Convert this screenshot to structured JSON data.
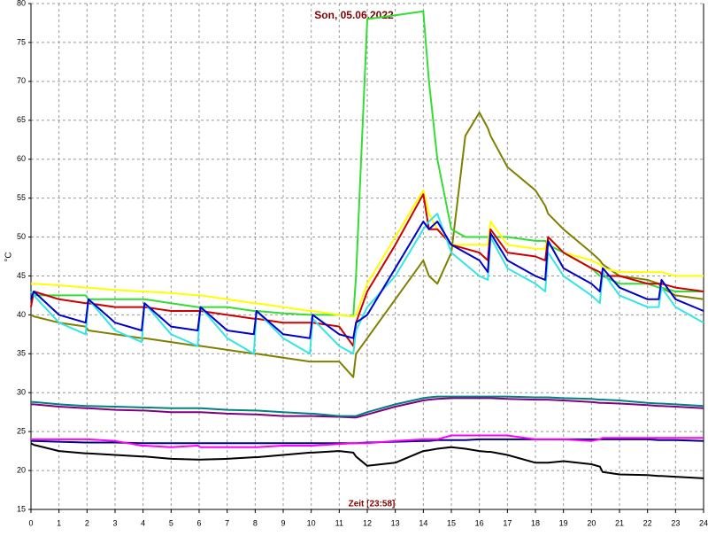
{
  "chart_data": {
    "type": "line",
    "title": "Son, 05.06.2022",
    "x_label": "Zeit [23:58]",
    "y_label": "°C",
    "x": [
      0,
      0.1,
      1,
      1.95,
      2.05,
      3,
      3.95,
      4.05,
      5,
      5.95,
      6.05,
      7,
      7.95,
      8.05,
      9,
      9.95,
      10.05,
      11,
      11.5,
      11.6,
      12,
      13,
      14,
      14.2,
      14.5,
      15,
      15.5,
      16,
      16.3,
      16.4,
      17,
      18,
      18.35,
      18.45,
      19,
      20,
      20.3,
      20.4,
      21,
      22,
      22.4,
      22.5,
      23,
      24
    ],
    "series": [
      {
        "color": "#000000",
        "values": [
          23.5,
          23.3,
          22.5,
          22.2,
          22.2,
          22,
          21.8,
          21.8,
          21.5,
          21.4,
          21.4,
          21.5,
          21.7,
          21.7,
          22,
          22.3,
          22.3,
          22.5,
          22.3,
          21.8,
          20.6,
          21,
          22.5,
          22.6,
          22.8,
          23,
          22.8,
          22.5,
          22.4,
          22.4,
          22,
          21,
          21,
          21,
          21.2,
          20.8,
          20.5,
          19.8,
          19.5,
          19.4,
          19.3,
          19.3,
          19.2,
          19
        ]
      },
      {
        "color": "#000080",
        "values": [
          23.8,
          23.8,
          23.7,
          23.6,
          23.6,
          23.6,
          23.5,
          23.5,
          23.5,
          23.5,
          23.5,
          23.5,
          23.5,
          23.5,
          23.5,
          23.5,
          23.5,
          23.5,
          23.5,
          23.5,
          23.6,
          23.7,
          23.8,
          23.8,
          23.9,
          23.9,
          23.9,
          24,
          24,
          24,
          24,
          24,
          24,
          24,
          24,
          24,
          24,
          24,
          24,
          24,
          23.9,
          23.9,
          23.9,
          23.8
        ]
      },
      {
        "color": "#ff00ff",
        "values": [
          24,
          24,
          24,
          24,
          24,
          23.8,
          23.2,
          23.2,
          23,
          23.2,
          23,
          23,
          23,
          23,
          23.2,
          23.2,
          23.2,
          23.4,
          23.5,
          23.5,
          23.5,
          23.8,
          24,
          24,
          24,
          24.5,
          24.5,
          24.5,
          24.5,
          24.5,
          24.5,
          24,
          24,
          24,
          24,
          23.8,
          24,
          24.2,
          24.2,
          24.2,
          24.2,
          24.2,
          24.2,
          24.2
        ]
      },
      {
        "color": "#800080",
        "values": [
          28.5,
          28.5,
          28.2,
          28,
          28,
          27.8,
          27.7,
          27.7,
          27.5,
          27.5,
          27.5,
          27.3,
          27.2,
          27.2,
          27,
          27,
          27,
          26.9,
          26.8,
          26.8,
          27.2,
          28.2,
          29,
          29.1,
          29.2,
          29.3,
          29.3,
          29.3,
          29.3,
          29.3,
          29.2,
          29.1,
          29.1,
          29.1,
          29,
          28.8,
          28.7,
          28.7,
          28.6,
          28.4,
          28.3,
          28.3,
          28.2,
          28
        ]
      },
      {
        "color": "#008080",
        "values": [
          28.8,
          28.8,
          28.5,
          28.3,
          28.3,
          28.2,
          28.1,
          28.1,
          28,
          28,
          28,
          27.8,
          27.7,
          27.7,
          27.5,
          27.3,
          27.3,
          27,
          27,
          27,
          27.5,
          28.5,
          29.3,
          29.4,
          29.5,
          29.5,
          29.5,
          29.5,
          29.5,
          29.5,
          29.5,
          29.4,
          29.4,
          29.4,
          29.3,
          29.2,
          29.1,
          29.1,
          29,
          28.7,
          28.6,
          28.6,
          28.5,
          28.3
        ]
      },
      {
        "color": "#808000",
        "values": [
          40,
          39.8,
          39,
          38.5,
          38,
          37.5,
          37,
          37,
          36.5,
          36,
          36,
          35.5,
          35,
          35,
          34.5,
          34,
          34,
          34,
          32,
          35,
          37,
          42,
          47,
          45,
          44,
          48,
          63,
          66,
          64,
          63,
          59,
          56,
          54,
          53,
          51,
          48,
          47,
          46.5,
          45,
          44.5,
          44,
          43.5,
          42.5,
          42
        ]
      },
      {
        "color": "#33dd33",
        "values": [
          43,
          42.5,
          42.5,
          42.5,
          42,
          42,
          42,
          42,
          41.5,
          41,
          41,
          41,
          40.5,
          40.5,
          40.2,
          40,
          40,
          40,
          39.8,
          45,
          78,
          78.5,
          79,
          70,
          60,
          51,
          50,
          50,
          50,
          50,
          50,
          49.5,
          49.5,
          49,
          48,
          46,
          45,
          45,
          44,
          44,
          43.5,
          43.5,
          43,
          43
        ]
      },
      {
        "color": "#ffff00",
        "values": [
          44,
          44,
          43.8,
          43.5,
          43.5,
          43.2,
          43,
          43,
          42.8,
          42.5,
          42.5,
          42,
          41.5,
          41.5,
          41,
          40.5,
          40.5,
          40,
          39.8,
          40,
          44,
          50,
          56,
          53,
          51,
          49,
          49,
          49,
          49,
          52,
          49,
          48.5,
          48.5,
          50,
          48,
          47,
          46.5,
          46,
          45.5,
          45.5,
          45.5,
          45.5,
          45,
          45
        ]
      },
      {
        "color": "#cc0000",
        "values": [
          41,
          43,
          42,
          41.5,
          41.5,
          41,
          41,
          41,
          40.5,
          40.5,
          40.5,
          40,
          39.5,
          39.5,
          39,
          39,
          39,
          38.5,
          36,
          39,
          43,
          49,
          55.5,
          51,
          51,
          49,
          48.5,
          48,
          47,
          51,
          48,
          47.5,
          47,
          50,
          48,
          46,
          45.5,
          45,
          45,
          44,
          44,
          44,
          43.5,
          43
        ]
      },
      {
        "color": "#33e5e5",
        "values": [
          43,
          42.5,
          39,
          37.5,
          42,
          38,
          36.5,
          41.5,
          37.5,
          36,
          41,
          37,
          35,
          40.5,
          37,
          35,
          39.5,
          36,
          35,
          38,
          41,
          45,
          51,
          52,
          53,
          48,
          46.5,
          45,
          44.5,
          50,
          46,
          44,
          43,
          48,
          45,
          42.5,
          41.5,
          45.5,
          42.5,
          41,
          41,
          43.5,
          41,
          39
        ]
      },
      {
        "color": "#0000cc",
        "values": [
          42,
          43,
          40,
          39,
          42,
          39,
          38,
          41.5,
          38.5,
          38,
          41,
          38,
          37.5,
          40.5,
          37.5,
          37,
          40,
          37.5,
          37,
          39,
          40,
          46,
          52,
          51,
          52,
          49,
          48,
          47,
          45.5,
          50.5,
          47,
          45,
          44.5,
          49.5,
          46,
          44,
          43,
          46,
          43.5,
          42,
          42,
          44.5,
          42,
          40.5
        ]
      }
    ],
    "xlim": [
      0,
      24
    ],
    "ylim": [
      15,
      80
    ],
    "xticks": [
      0,
      1,
      2,
      3,
      4,
      5,
      6,
      7,
      8,
      9,
      10,
      11,
      12,
      13,
      14,
      15,
      16,
      17,
      18,
      19,
      20,
      21,
      22,
      23,
      24
    ],
    "yticks": [
      15,
      20,
      25,
      30,
      35,
      40,
      45,
      50,
      55,
      60,
      65,
      70,
      75,
      80
    ],
    "grid": true
  }
}
